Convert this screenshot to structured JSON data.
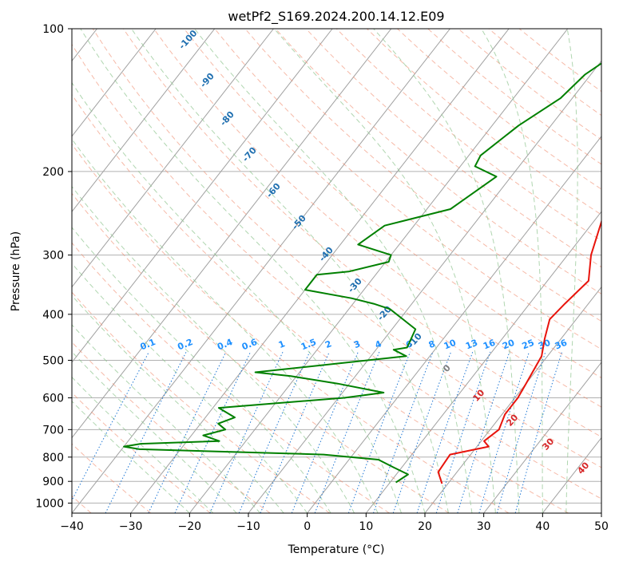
{
  "chart_data": {
    "type": "line",
    "chart_kind": "skew-t log-p",
    "title": "wetPf2_S169.2024.200.14.12.E09",
    "xlabel": "Temperature (°C)",
    "ylabel": "Pressure (hPa)",
    "xlim": [
      -40,
      50
    ],
    "ylim": [
      1050,
      100
    ],
    "y_scale": "log",
    "x_ticks": [
      -40,
      -30,
      -20,
      -10,
      0,
      10,
      20,
      30,
      40,
      50
    ],
    "y_ticks": [
      100,
      200,
      300,
      400,
      500,
      600,
      700,
      800,
      900,
      1000
    ],
    "grid": true,
    "series": [
      {
        "name": "",
        "role": "temperature",
        "color": "#e8140c",
        "points": [
          [
            1.5,
            100
          ],
          [
            -1.8,
            115
          ],
          [
            -1.5,
            125
          ],
          [
            1.4,
            150
          ],
          [
            5.5,
            180
          ],
          [
            5.2,
            200
          ],
          [
            8.0,
            225
          ],
          [
            11.0,
            250
          ],
          [
            14.0,
            300
          ],
          [
            17.0,
            340
          ],
          [
            16.0,
            380
          ],
          [
            15.5,
            410
          ],
          [
            17.2,
            450
          ],
          [
            19.0,
            490
          ],
          [
            20.0,
            560
          ],
          [
            20.5,
            600
          ],
          [
            20.5,
            650
          ],
          [
            21.5,
            700
          ],
          [
            20.5,
            740
          ],
          [
            22.0,
            760
          ],
          [
            16.5,
            790
          ],
          [
            16.8,
            860
          ],
          [
            19.0,
            910
          ]
        ]
      },
      {
        "name": "",
        "role": "dewpoint",
        "color": "#008000",
        "points": [
          [
            -7.0,
            100
          ],
          [
            -9.0,
            115
          ],
          [
            -11.0,
            125
          ],
          [
            -12.0,
            140
          ],
          [
            -15.5,
            160
          ],
          [
            -18.0,
            185
          ],
          [
            -17.5,
            195
          ],
          [
            -12.5,
            205
          ],
          [
            -16.0,
            240
          ],
          [
            -25.0,
            260
          ],
          [
            -27.0,
            285
          ],
          [
            -20.0,
            300
          ],
          [
            -19.5,
            310
          ],
          [
            -25.0,
            325
          ],
          [
            -30.0,
            330
          ],
          [
            -30.0,
            355
          ],
          [
            -21.0,
            370
          ],
          [
            -16.5,
            380
          ],
          [
            -13.0,
            390
          ],
          [
            -6.0,
            430
          ],
          [
            -5.0,
            470
          ],
          [
            -7.0,
            475
          ],
          [
            -4.0,
            490
          ],
          [
            -27.5,
            530
          ],
          [
            -21.0,
            540
          ],
          [
            -12.0,
            560
          ],
          [
            -3.0,
            585
          ],
          [
            -9.0,
            600
          ],
          [
            -29.0,
            630
          ],
          [
            -25.0,
            660
          ],
          [
            -27.0,
            680
          ],
          [
            -25.0,
            700
          ],
          [
            -28.0,
            720
          ],
          [
            -24.5,
            740
          ],
          [
            -37.5,
            750
          ],
          [
            -40.0,
            760
          ],
          [
            -37.0,
            770
          ],
          [
            -5.0,
            790
          ],
          [
            5.0,
            810
          ],
          [
            8.5,
            840
          ],
          [
            12.0,
            870
          ],
          [
            11.0,
            905
          ]
        ]
      }
    ],
    "annotations": {
      "dry_adiabat_labels": [
        "-100",
        "-90",
        "-80",
        "-70",
        "-60",
        "-50",
        "-40",
        "-30",
        "-20",
        "-10",
        "0",
        "10",
        "20",
        "30",
        "40"
      ],
      "mixing_ratio_labels": [
        "0.1",
        "0.2",
        "0.4",
        "0.6",
        "1",
        "1.5",
        "2",
        "3",
        "4",
        "6",
        "8",
        "10",
        "13",
        "16",
        "20",
        "25",
        "30",
        "36"
      ]
    },
    "colors": {
      "isotherm": "#a0a0a0",
      "isobar": "#b0b0b0",
      "dry_adiabat": "#f08c6e",
      "moist_adiabat": "#8fc48f",
      "mixing_ratio": "#1f77d4",
      "dry_label": "#1f6fb0",
      "warm_label": "#d62728",
      "mixing_label": "#1e90ff"
    }
  }
}
